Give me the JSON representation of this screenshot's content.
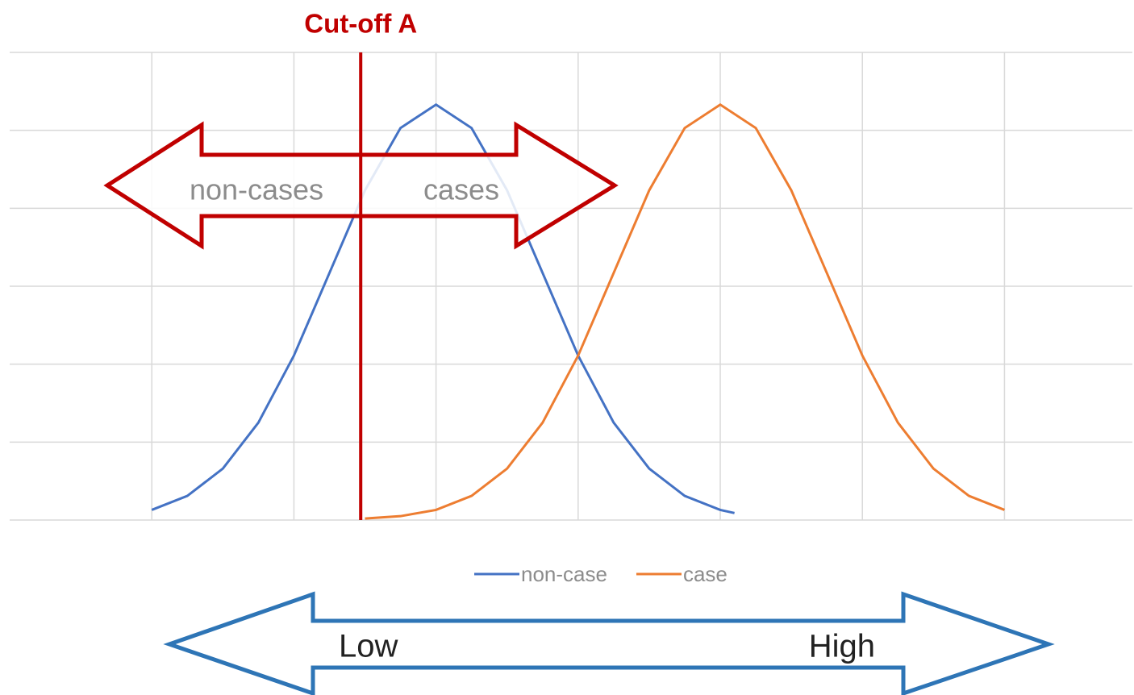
{
  "chart_data": {
    "type": "line",
    "series": [
      {
        "name": "non-case",
        "color": "#4472c4",
        "x": [
          1,
          1.25,
          1.5,
          1.75,
          2,
          2.25,
          2.5,
          2.75,
          3,
          3.25,
          3.5,
          3.75,
          4,
          4.25,
          4.5,
          4.75,
          5,
          5.1
        ],
        "values": [
          0.13,
          0.31,
          0.66,
          1.25,
          2.11,
          3.17,
          4.23,
          5.03,
          5.33,
          5.03,
          4.23,
          3.17,
          2.11,
          1.25,
          0.66,
          0.31,
          0.13,
          0.09
        ]
      },
      {
        "name": "case",
        "color": "#ed7d31",
        "x": [
          2.5,
          2.75,
          3,
          3.25,
          3.5,
          3.75,
          4,
          4.25,
          4.5,
          4.75,
          5,
          5.25,
          5.5,
          5.75,
          6,
          6.25,
          6.5,
          6.75,
          7
        ],
        "values": [
          0.02,
          0.05,
          0.13,
          0.31,
          0.66,
          1.25,
          2.11,
          3.17,
          4.23,
          5.03,
          5.33,
          5.03,
          4.23,
          3.17,
          2.11,
          1.25,
          0.66,
          0.31,
          0.13
        ]
      }
    ],
    "xlim": [
      0,
      7.9
    ],
    "xticks": [
      1,
      2,
      3,
      4,
      5,
      6,
      7
    ],
    "ylim": [
      0,
      6
    ],
    "yticks": [
      0,
      1,
      2,
      3,
      4,
      5,
      6
    ],
    "grid": true,
    "legend": "bottom",
    "cutoff": {
      "label": "Cut-off A",
      "x": 2.47,
      "color": "#c00000",
      "left": "non-cases",
      "right": "cases"
    },
    "scale_arrow": {
      "left": "Low",
      "right": "High",
      "color": "#2e75b6"
    }
  }
}
